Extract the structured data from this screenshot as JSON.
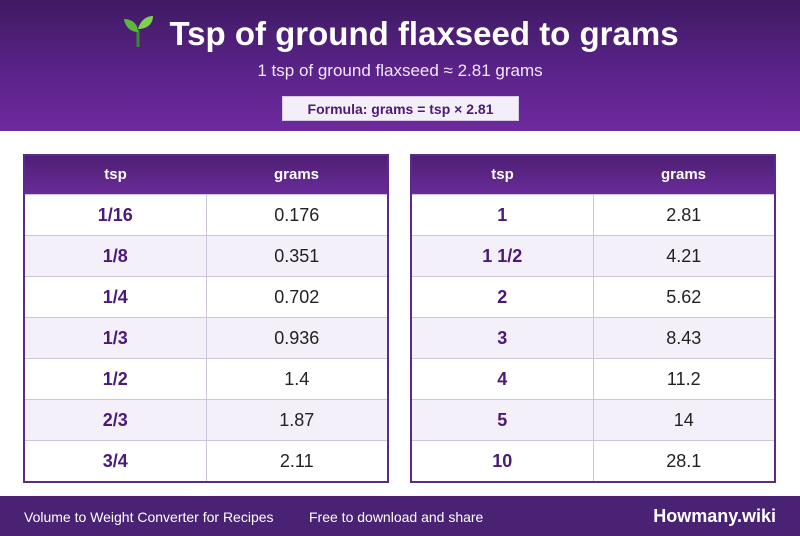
{
  "header": {
    "title": "Tsp of ground flaxseed to grams",
    "icon": "sprout-icon",
    "subtitle": "1 tsp of ground flaxseed ≈ 2.81 grams",
    "formula": "Formula: grams = tsp × 2.81"
  },
  "table_left": {
    "col_tsp": "tsp",
    "col_grams": "grams",
    "rows": [
      {
        "tsp": "1/16",
        "grams": "0.176"
      },
      {
        "tsp": "1/8",
        "grams": "0.351"
      },
      {
        "tsp": "1/4",
        "grams": "0.702"
      },
      {
        "tsp": "1/3",
        "grams": "0.936"
      },
      {
        "tsp": "1/2",
        "grams": "1.4"
      },
      {
        "tsp": "2/3",
        "grams": "1.87"
      },
      {
        "tsp": "3/4",
        "grams": "2.11"
      }
    ]
  },
  "table_right": {
    "col_tsp": "tsp",
    "col_grams": "grams",
    "rows": [
      {
        "tsp": "1",
        "grams": "2.81"
      },
      {
        "tsp": "1 1/2",
        "grams": "4.21"
      },
      {
        "tsp": "2",
        "grams": "5.62"
      },
      {
        "tsp": "3",
        "grams": "8.43"
      },
      {
        "tsp": "4",
        "grams": "11.2"
      },
      {
        "tsp": "5",
        "grams": "14"
      },
      {
        "tsp": "10",
        "grams": "28.1"
      }
    ]
  },
  "footer": {
    "left_text": "Volume to Weight Converter for Recipes",
    "middle_text": "Free to download and share",
    "brand": "Howmany.wiki"
  },
  "colors": {
    "header_purple": "#5b2389",
    "table_header_purple": "#5d2a88",
    "footer_purple": "#4a2274",
    "row_alt": "#f4f0f9",
    "tsp_text": "#4a1a78"
  }
}
